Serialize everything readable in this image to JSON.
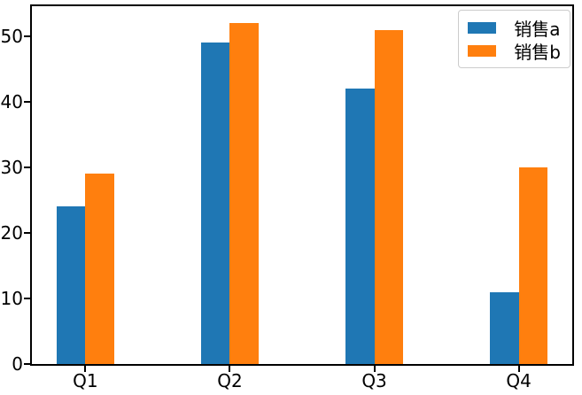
{
  "chart_data": {
    "type": "bar",
    "categories": [
      "Q1",
      "Q2",
      "Q3",
      "Q4"
    ],
    "series": [
      {
        "name": "销售a",
        "color": "#1f77b4",
        "values": [
          24,
          49,
          42,
          11
        ]
      },
      {
        "name": "销售b",
        "color": "#ff7f0e",
        "values": [
          29,
          52,
          51,
          30
        ]
      }
    ],
    "yticks": [
      0,
      10,
      20,
      30,
      40,
      50
    ],
    "ylim": [
      0,
      54.6
    ],
    "xlim": [
      -0.37,
      3.37
    ],
    "bar_width": 0.2,
    "grid": false,
    "legend_position": "top-right",
    "axis_color": "#000000",
    "tick_label_color": "#000000",
    "background_color": "#ffffff"
  }
}
